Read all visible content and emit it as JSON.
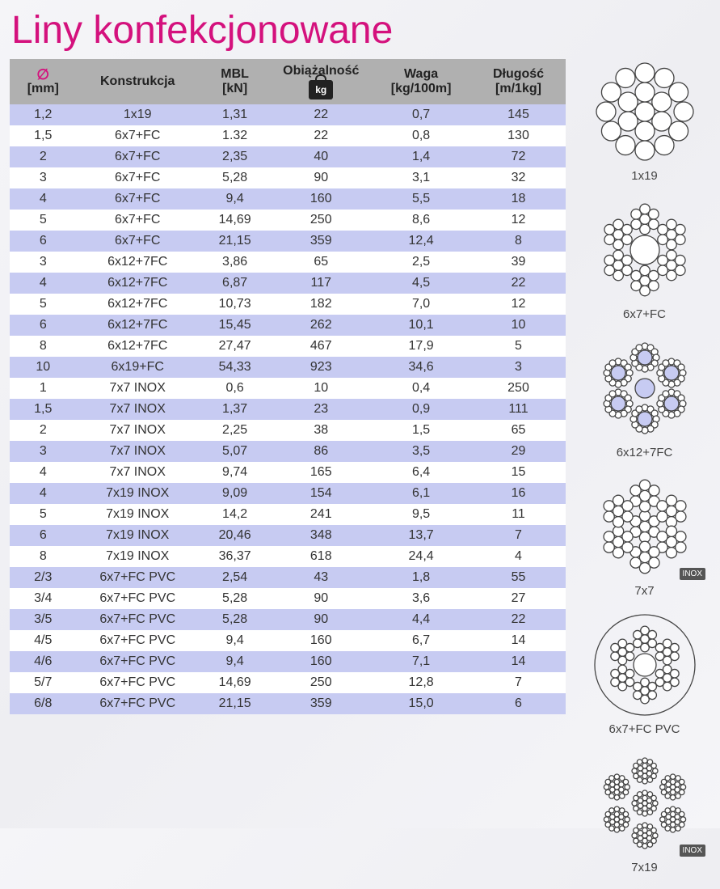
{
  "title": "Liny konfekcjonowane",
  "headers": {
    "diam_top": "∅",
    "diam_unit": "[mm]",
    "construction": "Konstrukcja",
    "mbl_top": "MBL",
    "mbl_unit": "[kN]",
    "load_top": "Obiążalność",
    "load_icon": "kg",
    "weight_top": "Waga",
    "weight_unit": "[kg/100m]",
    "length_top": "Długość",
    "length_unit": "[m/1kg]"
  },
  "col_widths_pct": [
    12,
    22,
    13,
    18,
    18,
    17
  ],
  "rows": [
    {
      "d": "1,2",
      "con": "1x19",
      "mbl": "1,31",
      "load": "22",
      "w": "0,7",
      "len": "145"
    },
    {
      "d": "1,5",
      "con": "6x7+FC",
      "mbl": "1.32",
      "load": "22",
      "w": "0,8",
      "len": "130"
    },
    {
      "d": "2",
      "con": "6x7+FC",
      "mbl": "2,35",
      "load": "40",
      "w": "1,4",
      "len": "72"
    },
    {
      "d": "3",
      "con": "6x7+FC",
      "mbl": "5,28",
      "load": "90",
      "w": "3,1",
      "len": "32"
    },
    {
      "d": "4",
      "con": "6x7+FC",
      "mbl": "9,4",
      "load": "160",
      "w": "5,5",
      "len": "18"
    },
    {
      "d": "5",
      "con": "6x7+FC",
      "mbl": "14,69",
      "load": "250",
      "w": "8,6",
      "len": "12"
    },
    {
      "d": "6",
      "con": "6x7+FC",
      "mbl": "21,15",
      "load": "359",
      "w": "12,4",
      "len": "8"
    },
    {
      "d": "3",
      "con": "6x12+7FC",
      "mbl": "3,86",
      "load": "65",
      "w": "2,5",
      "len": "39"
    },
    {
      "d": "4",
      "con": "6x12+7FC",
      "mbl": "6,87",
      "load": "117",
      "w": "4,5",
      "len": "22"
    },
    {
      "d": "5",
      "con": "6x12+7FC",
      "mbl": "10,73",
      "load": "182",
      "w": "7,0",
      "len": "12"
    },
    {
      "d": "6",
      "con": "6x12+7FC",
      "mbl": "15,45",
      "load": "262",
      "w": "10,1",
      "len": "10"
    },
    {
      "d": "8",
      "con": "6x12+7FC",
      "mbl": "27,47",
      "load": "467",
      "w": "17,9",
      "len": "5"
    },
    {
      "d": "10",
      "con": "6x19+FC",
      "mbl": "54,33",
      "load": "923",
      "w": "34,6",
      "len": "3"
    },
    {
      "d": "1",
      "con": "7x7 INOX",
      "mbl": "0,6",
      "load": "10",
      "w": "0,4",
      "len": "250"
    },
    {
      "d": "1,5",
      "con": "7x7 INOX",
      "mbl": "1,37",
      "load": "23",
      "w": "0,9",
      "len": "111"
    },
    {
      "d": "2",
      "con": "7x7 INOX",
      "mbl": "2,25",
      "load": "38",
      "w": "1,5",
      "len": "65"
    },
    {
      "d": "3",
      "con": "7x7 INOX",
      "mbl": "5,07",
      "load": "86",
      "w": "3,5",
      "len": "29"
    },
    {
      "d": "4",
      "con": "7x7 INOX",
      "mbl": "9,74",
      "load": "165",
      "w": "6,4",
      "len": "15"
    },
    {
      "d": "4",
      "con": "7x19 INOX",
      "mbl": "9,09",
      "load": "154",
      "w": "6,1",
      "len": "16"
    },
    {
      "d": "5",
      "con": "7x19 INOX",
      "mbl": "14,2",
      "load": "241",
      "w": "9,5",
      "len": "11"
    },
    {
      "d": "6",
      "con": "7x19 INOX",
      "mbl": "20,46",
      "load": "348",
      "w": "13,7",
      "len": "7"
    },
    {
      "d": "8",
      "con": "7x19 INOX",
      "mbl": "36,37",
      "load": "618",
      "w": "24,4",
      "len": "4"
    },
    {
      "d": "2/3",
      "con": "6x7+FC PVC",
      "mbl": "2,54",
      "load": "43",
      "w": "1,8",
      "len": "55"
    },
    {
      "d": "3/4",
      "con": "6x7+FC PVC",
      "mbl": "5,28",
      "load": "90",
      "w": "3,6",
      "len": "27"
    },
    {
      "d": "3/5",
      "con": "6x7+FC PVC",
      "mbl": "5,28",
      "load": "90",
      "w": "4,4",
      "len": "22"
    },
    {
      "d": "4/5",
      "con": "6x7+FC PVC",
      "mbl": "9,4",
      "load": "160",
      "w": "6,7",
      "len": "14"
    },
    {
      "d": "4/6",
      "con": "6x7+FC PVC",
      "mbl": "9,4",
      "load": "160",
      "w": "7,1",
      "len": "14"
    },
    {
      "d": "5/7",
      "con": "6x7+FC PVC",
      "mbl": "14,69",
      "load": "250",
      "w": "12,8",
      "len": "7"
    },
    {
      "d": "6/8",
      "con": "6x7+FC PVC",
      "mbl": "21,15",
      "load": "359",
      "w": "15,0",
      "len": "6"
    }
  ],
  "diagrams": [
    {
      "label": "1x19",
      "type": "1x19",
      "badge": null
    },
    {
      "label": "6x7+FC",
      "type": "6x7",
      "badge": null
    },
    {
      "label": "6x12+7FC",
      "type": "6x12",
      "badge": null
    },
    {
      "label": "7x7",
      "type": "7x7",
      "badge": "INOX"
    },
    {
      "label": "6x7+FC PVC",
      "type": "pvc",
      "badge": null
    },
    {
      "label": "7x19",
      "type": "7x19",
      "badge": "INOX"
    }
  ],
  "colors": {
    "title": "#d4117d",
    "header_bg": "#b0b0b0",
    "band_blue": "#c7cbf2",
    "band_white": "#ffffff",
    "stroke": "#444444",
    "diagram_fill": "#ffffff",
    "diagram_shade": "#c7cbf2"
  }
}
